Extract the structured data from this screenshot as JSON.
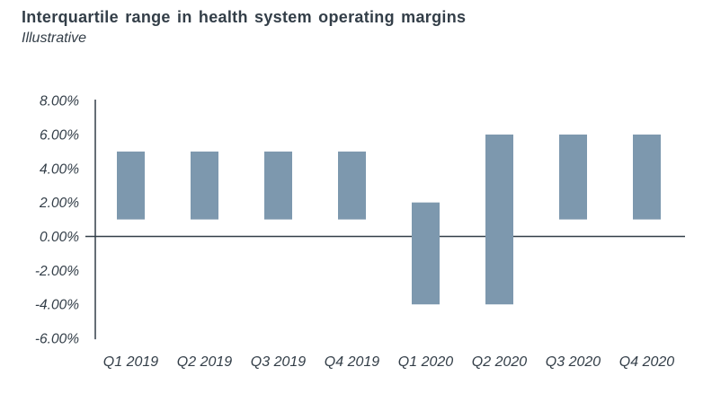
{
  "page": {
    "title": "Interquartile range in health system operating margins",
    "subtitle": "Illustrative"
  },
  "colors": {
    "background": "#FFFFFF",
    "bar": "#7D98AE",
    "text": "#333E48",
    "axis_line": "#333E48"
  },
  "chart_data": {
    "type": "bar",
    "subtype": "floating-range-columns",
    "title": "Interquartile range in health system operating margins",
    "subtitle": "Illustrative",
    "xlabel": "",
    "ylabel": "",
    "unit": "percent",
    "categories": [
      "Q1 2019",
      "Q2 2019",
      "Q3 2019",
      "Q4 2019",
      "Q1 2020",
      "Q2 2020",
      "Q3 2020",
      "Q4 2020"
    ],
    "series": [
      {
        "name": "Interquartile range",
        "ranges": [
          [
            1,
            5
          ],
          [
            1,
            5
          ],
          [
            1,
            5
          ],
          [
            1,
            5
          ],
          [
            -4,
            2
          ],
          [
            -4,
            6
          ],
          [
            1,
            6
          ],
          [
            1,
            6
          ]
        ]
      }
    ],
    "ylim": [
      -6,
      8
    ],
    "ytick_step": 2,
    "yticks": [
      8,
      6,
      4,
      2,
      0,
      -2,
      -4,
      -6
    ],
    "ytick_labels": [
      "8.00%",
      "6.00%",
      "4.00%",
      "2.00%",
      "0.00%",
      "-2.00%",
      "-4.00%",
      "-6.00%"
    ],
    "grid": false,
    "legend": false,
    "zero_baseline": true
  }
}
